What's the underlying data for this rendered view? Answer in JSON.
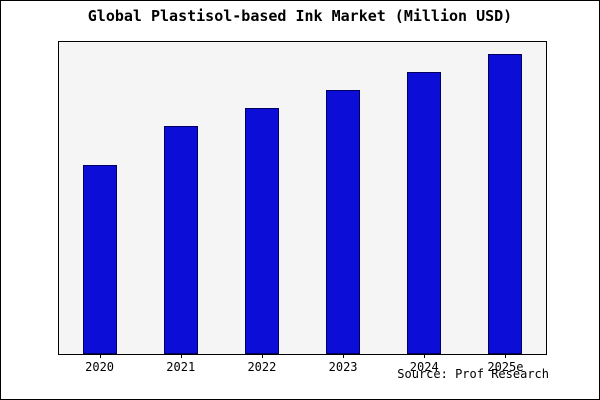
{
  "title": "Global Plastisol-based Ink Market (Million USD)",
  "source": "Source: Prof Research",
  "chart_data": {
    "type": "bar",
    "title": "Global Plastisol-based Ink Market (Million USD)",
    "categories": [
      "2020",
      "2021",
      "2022",
      "2023",
      "2024",
      "2025e"
    ],
    "values": [
      63,
      76,
      82,
      88,
      94,
      100
    ],
    "values_note": "relative units estimated from bar heights; no y-axis scale shown",
    "xlabel": "",
    "ylabel": "",
    "ylim": [
      0,
      104
    ],
    "grid": false,
    "legend": false,
    "annotations": [
      "Source: Prof Research"
    ],
    "colors": {
      "bar_fill": "#0d0dd8",
      "bar_edge": "#000060",
      "plot_bg": "#f5f5f5",
      "frame": "#000000",
      "background": "#ffffff"
    }
  }
}
